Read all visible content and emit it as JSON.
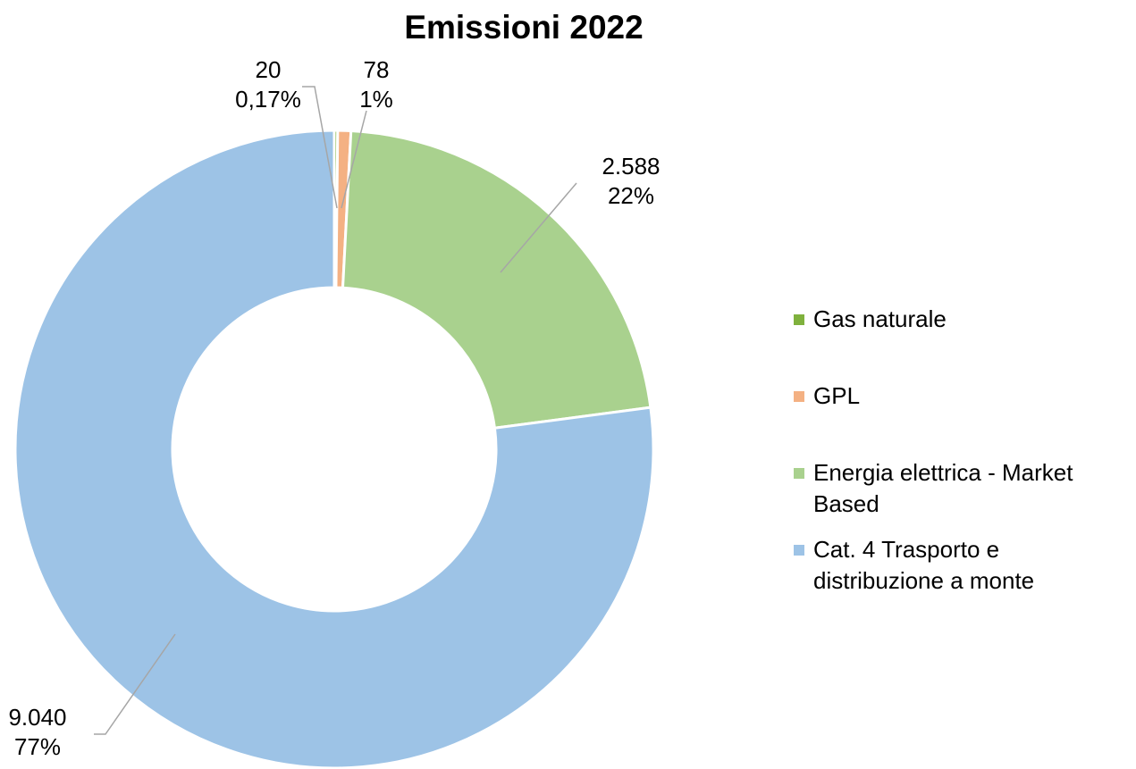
{
  "chart_data": {
    "type": "donut",
    "title": "Emissioni 2022",
    "categories": [
      "Gas naturale",
      "GPL",
      "Energia elettrica - Market Based",
      "Cat. 4 Trasporto e distribuzione a monte"
    ],
    "values": [
      20,
      78,
      2588,
      9040
    ],
    "value_labels": [
      "20",
      "78",
      "2.588",
      "9.040"
    ],
    "percent_labels": [
      "0,17%",
      "1%",
      "22%",
      "77%"
    ],
    "colors": [
      "#7fb13d",
      "#f4b183",
      "#a9d18e",
      "#9dc3e6"
    ],
    "legend": "right"
  }
}
